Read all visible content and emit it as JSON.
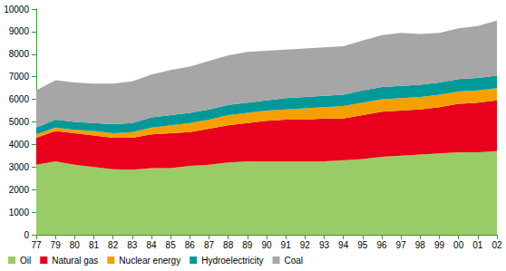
{
  "chart_data": {
    "type": "area",
    "stacked": true,
    "grid": false,
    "legend": "bottom-left",
    "categories": [
      "77",
      "79",
      "80",
      "81",
      "82",
      "83",
      "84",
      "85",
      "86",
      "87",
      "88",
      "89",
      "90",
      "91",
      "92",
      "93",
      "94",
      "95",
      "96",
      "97",
      "98",
      "99",
      "00",
      "01",
      "02"
    ],
    "ylim": [
      0,
      10000
    ],
    "yticks": [
      0,
      1000,
      2000,
      3000,
      4000,
      5000,
      6000,
      7000,
      8000,
      9000,
      10000
    ],
    "series": [
      {
        "name": "Oil",
        "color": "#99cc66",
        "values": [
          3100,
          3250,
          3100,
          3000,
          2900,
          2880,
          2950,
          2950,
          3050,
          3100,
          3200,
          3250,
          3250,
          3250,
          3250,
          3250,
          3300,
          3350,
          3450,
          3500,
          3550,
          3600,
          3650,
          3650,
          3700
        ]
      },
      {
        "name": "Natural gas",
        "color": "#e8001c",
        "values": [
          1200,
          1350,
          1400,
          1400,
          1400,
          1420,
          1500,
          1550,
          1500,
          1600,
          1650,
          1700,
          1800,
          1850,
          1850,
          1900,
          1850,
          1950,
          2000,
          2000,
          2000,
          2050,
          2150,
          2200,
          2250
        ]
      },
      {
        "name": "Nuclear energy",
        "color": "#f5a000",
        "values": [
          150,
          150,
          150,
          200,
          200,
          250,
          300,
          350,
          400,
          400,
          450,
          450,
          450,
          450,
          500,
          500,
          550,
          550,
          550,
          550,
          550,
          550,
          550,
          550,
          550
        ]
      },
      {
        "name": "Hydroelectricity",
        "color": "#00999a",
        "values": [
          300,
          350,
          350,
          350,
          400,
          400,
          450,
          450,
          450,
          450,
          450,
          450,
          450,
          500,
          500,
          500,
          500,
          550,
          550,
          550,
          550,
          550,
          550,
          550,
          550
        ]
      },
      {
        "name": "Coal",
        "color": "#a6a6a6",
        "values": [
          1650,
          1750,
          1750,
          1750,
          1800,
          1850,
          1900,
          2000,
          2050,
          2150,
          2200,
          2250,
          2200,
          2150,
          2150,
          2150,
          2150,
          2200,
          2300,
          2350,
          2250,
          2200,
          2250,
          2300,
          2450
        ]
      }
    ]
  }
}
